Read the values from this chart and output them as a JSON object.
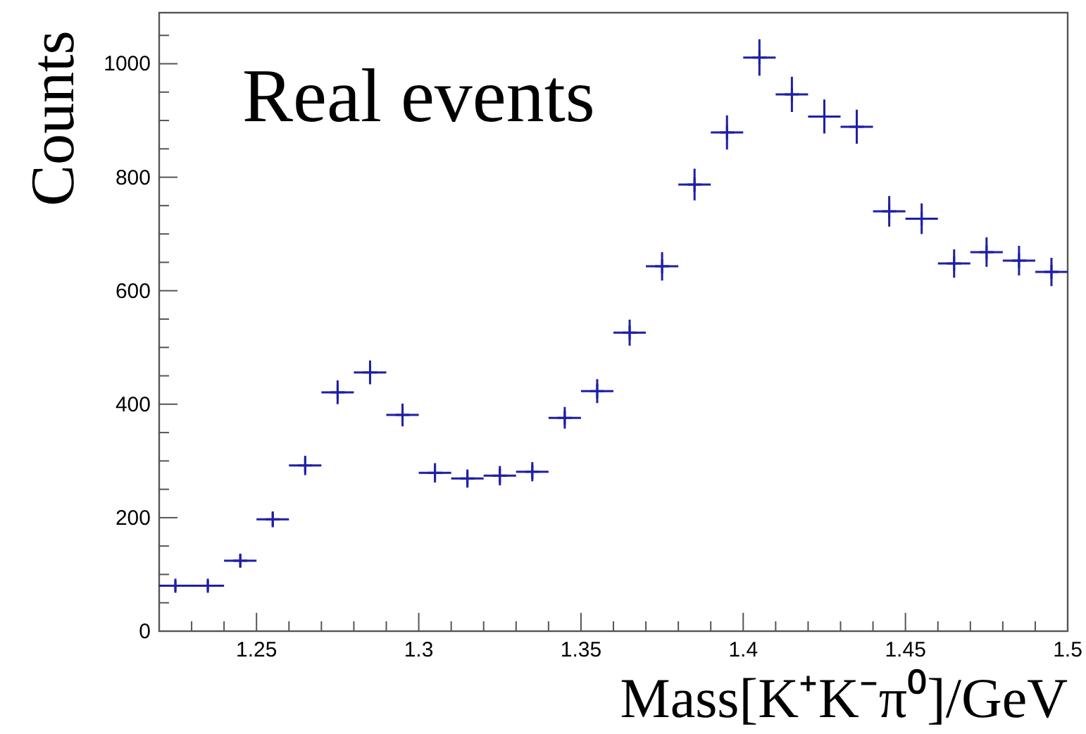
{
  "chart_data": {
    "type": "scatter",
    "title": "Real events",
    "xlabel": "Mass[K⁺K⁻π⁰]/GeV",
    "ylabel": "Counts",
    "marker": "cross",
    "grid": false,
    "xlim": [
      1.22,
      1.5
    ],
    "ylim": [
      0,
      1090
    ],
    "xticks": [
      {
        "value": 1.23,
        "label": null
      },
      {
        "value": 1.24,
        "label": null
      },
      1.25,
      {
        "value": 1.26,
        "label": null
      },
      {
        "value": 1.27,
        "label": null
      },
      {
        "value": 1.28,
        "label": null
      },
      {
        "value": 1.29,
        "label": null
      },
      1.3,
      {
        "value": 1.31,
        "label": null
      },
      {
        "value": 1.32,
        "label": null
      },
      {
        "value": 1.33,
        "label": null
      },
      {
        "value": 1.34,
        "label": null
      },
      1.35,
      {
        "value": 1.36,
        "label": null
      },
      {
        "value": 1.37,
        "label": null
      },
      {
        "value": 1.38,
        "label": null
      },
      {
        "value": 1.39,
        "label": null
      },
      1.4,
      {
        "value": 1.41,
        "label": null
      },
      {
        "value": 1.42,
        "label": null
      },
      {
        "value": 1.43,
        "label": null
      },
      {
        "value": 1.44,
        "label": null
      },
      1.45,
      {
        "value": 1.46,
        "label": null
      },
      {
        "value": 1.47,
        "label": null
      },
      {
        "value": 1.48,
        "label": null
      },
      {
        "value": 1.49,
        "label": null
      },
      1.5
    ],
    "yticks": [
      0,
      {
        "value": 50,
        "label": null
      },
      {
        "value": 100,
        "label": null
      },
      {
        "value": 150,
        "label": null
      },
      200,
      {
        "value": 250,
        "label": null
      },
      {
        "value": 300,
        "label": null
      },
      {
        "value": 350,
        "label": null
      },
      400,
      {
        "value": 450,
        "label": null
      },
      {
        "value": 500,
        "label": null
      },
      {
        "value": 550,
        "label": null
      },
      600,
      {
        "value": 650,
        "label": null
      },
      {
        "value": 700,
        "label": null
      },
      {
        "value": 750,
        "label": null
      },
      800,
      {
        "value": 850,
        "label": null
      },
      {
        "value": 900,
        "label": null
      },
      {
        "value": 950,
        "label": null
      },
      1000,
      {
        "value": 1050,
        "label": null
      }
    ],
    "x": [
      1.225,
      1.235,
      1.245,
      1.255,
      1.265,
      1.275,
      1.285,
      1.295,
      1.305,
      1.315,
      1.325,
      1.335,
      1.345,
      1.355,
      1.365,
      1.375,
      1.385,
      1.395,
      1.405,
      1.415,
      1.425,
      1.435,
      1.445,
      1.455,
      1.465,
      1.475,
      1.485,
      1.495
    ],
    "series": [
      {
        "color": "#1f1fa5",
        "values": [
          80,
          80,
          124,
          197,
          292,
          421,
          456,
          381,
          279,
          269,
          274,
          281,
          376,
          423,
          526,
          643,
          787,
          879,
          1011,
          946,
          907,
          889,
          740,
          727,
          648,
          668,
          653,
          633
        ],
        "errors": [
          9,
          9,
          11,
          14,
          17,
          21,
          21,
          20,
          17,
          16,
          17,
          17,
          19,
          21,
          23,
          25,
          28,
          30,
          32,
          31,
          30,
          30,
          27,
          27,
          25,
          26,
          26,
          25
        ],
        "xerrors": [
          0.005,
          0.005,
          0.005,
          0.005,
          0.005,
          0.005,
          0.005,
          0.005,
          0.005,
          0.005,
          0.005,
          0.005,
          0.005,
          0.005,
          0.005,
          0.005,
          0.005,
          0.005,
          0.005,
          0.005,
          0.005,
          0.005,
          0.005,
          0.005,
          0.005,
          0.005,
          0.005,
          0.005
        ]
      }
    ]
  }
}
